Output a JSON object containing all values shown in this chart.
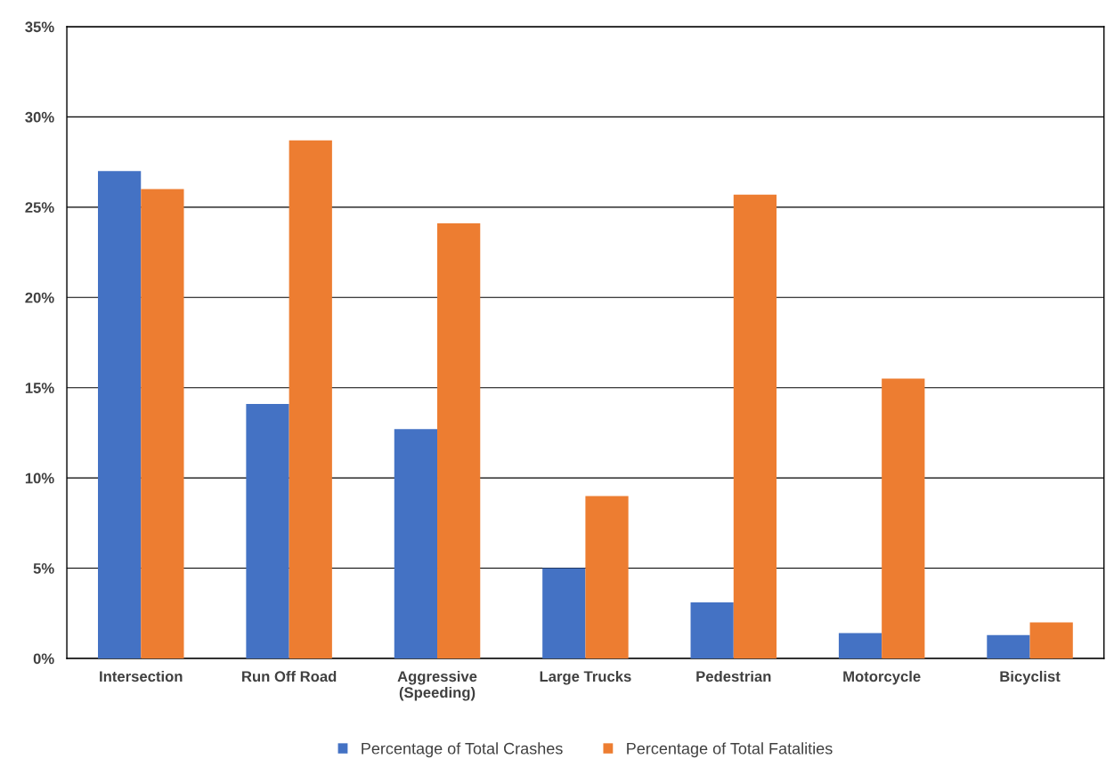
{
  "chart_data": {
    "type": "bar",
    "categories": [
      "Intersection",
      "Run Off Road",
      "Aggressive\n(Speeding)",
      "Large Trucks",
      "Pedestrian",
      "Motorcycle",
      "Bicyclist"
    ],
    "series": [
      {
        "name": "Percentage of Total Crashes",
        "color": "#4472c4",
        "values": [
          27.0,
          14.1,
          12.7,
          5.0,
          3.1,
          1.4,
          1.3
        ]
      },
      {
        "name": "Percentage of Total Fatalities",
        "color": "#ed7d31",
        "values": [
          26.0,
          28.7,
          24.1,
          9.0,
          25.7,
          15.5,
          2.0
        ]
      }
    ],
    "ylim": [
      0,
      35
    ],
    "yticks": [
      {
        "value": 0,
        "label": "0%"
      },
      {
        "value": 5,
        "label": "5%"
      },
      {
        "value": 10,
        "label": "10%"
      },
      {
        "value": 15,
        "label": "15%"
      },
      {
        "value": 20,
        "label": "20%"
      },
      {
        "value": 25,
        "label": "25%"
      },
      {
        "value": 30,
        "label": "30%"
      },
      {
        "value": 35,
        "label": "35%"
      }
    ],
    "grid": "y",
    "legend": "bottom"
  }
}
